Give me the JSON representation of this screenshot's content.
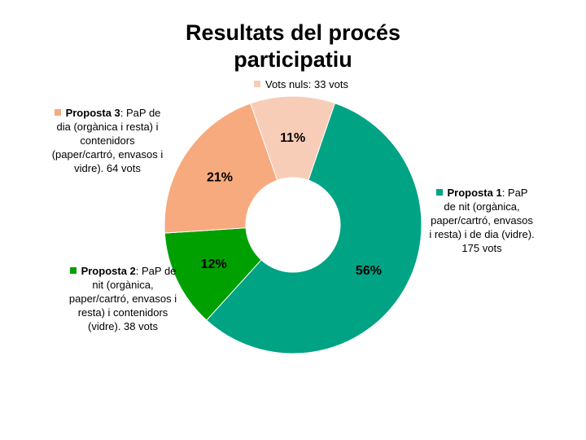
{
  "chart_data": {
    "type": "pie",
    "title": "Resultats del procés participatiu",
    "donut": true,
    "slices": [
      {
        "name": "Proposta 1",
        "desc": ": PaP de nit (orgànica, paper/cartró, envasos i resta) i de dia (vidre). 175 vots",
        "value": 175,
        "percent": "56%",
        "color": "#00A383"
      },
      {
        "name": "Proposta 2",
        "desc": ": PaP de nit (orgànica, paper/cartró, envasos i resta) i contenidors (vidre). 38 vots",
        "value": 38,
        "percent": "12%",
        "color": "#00A000"
      },
      {
        "name": "Proposta 3",
        "desc": ": PaP de dia (orgànica i resta) i contenidors (paper/cartró, envasos i vidre). 64 vots",
        "value": 64,
        "percent": "21%",
        "color": "#F7AA7D"
      },
      {
        "name": "",
        "desc": "Vots nuls: 33 vots",
        "value": 33,
        "percent": "11%",
        "color": "#F8CDB8"
      }
    ]
  }
}
